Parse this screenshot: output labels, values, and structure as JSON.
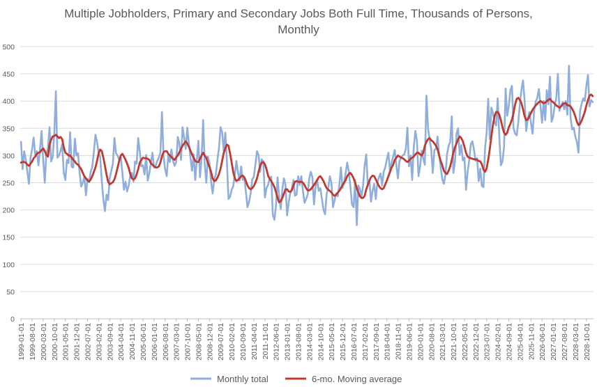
{
  "chart_data": {
    "type": "line",
    "title": "Multiple Jobholders, Primary and Secondary Jobs Both Full Time, Thousands of Persons, Monthly",
    "title_lines": [
      "Multiple Jobholders, Primary and Secondary Jobs Both Full Time, Thousands of Persons,",
      "Monthly"
    ],
    "xlabel": "",
    "ylabel": "",
    "ylim": [
      0,
      500
    ],
    "yticks": [
      0,
      50,
      100,
      150,
      200,
      250,
      300,
      350,
      400,
      450,
      500
    ],
    "x_start": "1999-01-01",
    "x_end": "2025-08-01",
    "xtick_every_months": 7,
    "grid": "horizontal",
    "legend_position": "bottom",
    "colors": {
      "monthly": "#8faedb",
      "moving_average": "#c0392f",
      "grid": "#d9d9d9",
      "axis": "#bfbfbf",
      "text": "#595959"
    },
    "series": [
      {
        "name": "Monthly total",
        "values": [
          325,
          275,
          308,
          292,
          270,
          248,
          296,
          312,
          333,
          300,
          308,
          282,
          312,
          345,
          292,
          250,
          305,
          313,
          352,
          289,
          297,
          340,
          418,
          296,
          300,
          309,
          321,
          268,
          255,
          292,
          286,
          343,
          279,
          278,
          331,
          300,
          304,
          268,
          243,
          250,
          261,
          227,
          257,
          251,
          270,
          279,
          307,
          338,
          325,
          305,
          297,
          253,
          220,
          198,
          228,
          218,
          258,
          272,
          285,
          332,
          304,
          300,
          292,
          298,
          268,
          237,
          252,
          234,
          245,
          264,
          268,
          252,
          289,
          285,
          332,
          307,
          280,
          282,
          265,
          301,
          254,
          267,
          286,
          305,
          278,
          281,
          290,
          296,
          305,
          380,
          298,
          275,
          262,
          300,
          288,
          311,
          290,
          281,
          288,
          334,
          322,
          292,
          352,
          333,
          312,
          351,
          322,
          297,
          272,
          302,
          255,
          291,
          327,
          260,
          295,
          365,
          285,
          250,
          298,
          286,
          253,
          230,
          255,
          265,
          291,
          314,
          352,
          343,
          308,
          342,
          290,
          220,
          224,
          237,
          244,
          265,
          290,
          269,
          254,
          280,
          255,
          260,
          233,
          205,
          215,
          230,
          256,
          261,
          283,
          308,
          301,
          270,
          293,
          289,
          223,
          240,
          246,
          258,
          261,
          191,
          182,
          208,
          260,
          224,
          202,
          238,
          258,
          246,
          190,
          213,
          231,
          239,
          255,
          226,
          228,
          262,
          246,
          262,
          236,
          213,
          220,
          228,
          258,
          270,
          260,
          210,
          243,
          255,
          235,
          240,
          220,
          200,
          192,
          230,
          240,
          262,
          250,
          205,
          218,
          230,
          225,
          245,
          278,
          240,
          250,
          268,
          287,
          270,
          243,
          210,
          205,
          255,
          172,
          245,
          238,
          225,
          245,
          282,
          302,
          245,
          255,
          215,
          235,
          248,
          220,
          250,
          260,
          267,
          245,
          270,
          278,
          293,
          305,
          270,
          287,
          298,
          310,
          282,
          258,
          290,
          296,
          300,
          302,
          313,
          351,
          280,
          300,
          255,
          315,
          345,
          327,
          262,
          280,
          309,
          294,
          283,
          410,
          350,
          330,
          312,
          268,
          310,
          312,
          335,
          303,
          278,
          257,
          248,
          265,
          302,
          318,
          325,
          372,
          268,
          288,
          340,
          350,
          301,
          319,
          291,
          296,
          237,
          270,
          291,
          321,
          326,
          311,
          290,
          295,
          253,
          276,
          244,
          242,
          313,
          342,
          404,
          330,
          388,
          378,
          361,
          355,
          405,
          335,
          282,
          289,
          315,
          423,
          373,
          390,
          420,
          428,
          350,
          340,
          337,
          361,
          394,
          421,
          438,
          401,
          345,
          368,
          380,
          360,
          340,
          382,
          399,
          406,
          422,
          392,
          360,
          400,
          365,
          420,
          394,
          445,
          362,
          371,
          392,
          406,
          450,
          382,
          391,
          398,
          385,
          400,
          375,
          465,
          370,
          348,
          351,
          335,
          325,
          305,
          382,
          395,
          405,
          400,
          428,
          448,
          390,
          402,
          398
        ]
      },
      {
        "name": "6-mo. Moving average",
        "values": [
          287,
          288,
          288,
          287,
          283,
          281,
          285,
          289,
          295,
          298,
          303,
          305,
          306,
          310,
          313,
          308,
          301,
          298,
          320,
          329,
          335,
          336,
          338,
          335,
          332,
          334,
          330,
          315,
          305,
          303,
          300,
          300,
          296,
          292,
          289,
          285,
          283,
          279,
          275,
          268,
          262,
          258,
          254,
          252,
          256,
          262,
          270,
          278,
          290,
          304,
          311,
          308,
          296,
          281,
          265,
          252,
          247,
          249,
          251,
          256,
          266,
          278,
          290,
          300,
          303,
          298,
          292,
          285,
          277,
          266,
          258,
          256,
          258,
          265,
          275,
          287,
          292,
          296,
          295,
          295,
          294,
          292,
          286,
          283,
          280,
          278,
          278,
          280,
          287,
          299,
          306,
          308,
          308,
          303,
          300,
          297,
          294,
          292,
          297,
          300,
          306,
          312,
          318,
          322,
          326,
          322,
          316,
          309,
          302,
          296,
          290,
          288,
          288,
          294,
          300,
          305,
          300,
          296,
          286,
          279,
          270,
          258,
          253,
          254,
          259,
          266,
          276,
          290,
          305,
          313,
          320,
          318,
          304,
          287,
          270,
          258,
          253,
          255,
          258,
          262,
          263,
          260,
          253,
          245,
          240,
          238,
          240,
          244,
          250,
          258,
          270,
          281,
          287,
          288,
          284,
          275,
          263,
          257,
          253,
          248,
          242,
          233,
          222,
          214,
          216,
          222,
          230,
          238,
          238,
          234,
          233,
          236,
          245,
          252,
          253,
          252,
          251,
          252,
          250,
          246,
          240,
          236,
          236,
          238,
          242,
          246,
          250,
          255,
          260,
          262,
          258,
          253,
          246,
          240,
          237,
          235,
          232,
          228,
          226,
          228,
          232,
          235,
          240,
          246,
          250,
          255,
          262,
          266,
          268,
          264,
          258,
          250,
          240,
          232,
          225,
          222,
          222,
          226,
          238,
          246,
          254,
          260,
          263,
          262,
          256,
          250,
          244,
          240,
          238,
          240,
          247,
          254,
          262,
          270,
          278,
          283,
          292,
          296,
          300,
          298,
          296,
          295,
          293,
          290,
          288,
          290,
          294,
          296,
          298,
          302,
          305,
          305,
          302,
          300,
          305,
          318,
          325,
          330,
          332,
          328,
          326,
          322,
          318,
          312,
          300,
          290,
          282,
          272,
          268,
          266,
          272,
          280,
          292,
          305,
          315,
          322,
          330,
          335,
          332,
          326,
          316,
          305,
          298,
          296,
          295,
          294,
          293,
          293,
          292,
          290,
          289,
          284,
          274,
          270,
          276,
          292,
          312,
          335,
          356,
          372,
          380,
          380,
          375,
          365,
          352,
          342,
          338,
          342,
          352,
          358,
          366,
          378,
          394,
          404,
          406,
          402,
          396,
          385,
          372,
          365,
          366,
          372,
          378,
          384,
          388,
          392,
          395,
          398,
          400,
          398,
          396,
          397,
          400,
          402,
          404,
          400,
          398,
          395,
          392,
          390,
          388,
          390,
          394,
          396,
          396,
          392,
          392,
          390,
          386,
          380,
          372,
          362,
          356,
          358,
          364,
          372,
          380,
          392,
          402,
          410,
          412,
          409
        ]
      }
    ]
  }
}
